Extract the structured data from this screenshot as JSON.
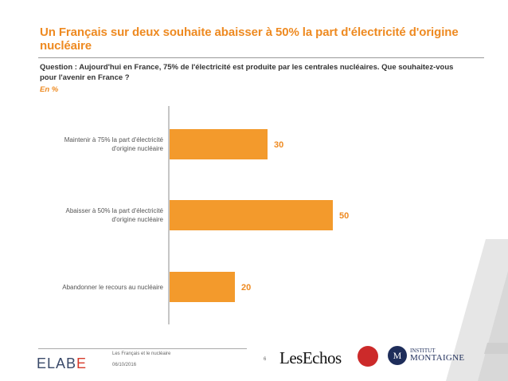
{
  "title": "Un Français sur deux souhaite abaisser à 50% la part d'électricité d'origine nucléaire",
  "question": "Question : Aujourd'hui en France, 75% de l'électricité est produite par les centrales nucléaires. Que souhaitez-vous pour l'avenir en France ?",
  "unit": "En  %",
  "chart_data": {
    "type": "bar",
    "orientation": "horizontal",
    "categories": [
      "Maintenir à 75% la part d'électricité d'origine nucléaire",
      "Abaisser à 50% la part d'électricité d'origine nucléaire",
      "Abandonner le recours au nucléaire"
    ],
    "values": [
      30,
      50,
      20
    ],
    "value_labels": [
      "30",
      "50",
      "20"
    ],
    "xlim": [
      0,
      100
    ],
    "bar_color": "#f39a2c",
    "label_color": "#ee8a21",
    "grid": false
  },
  "footer": {
    "logo_left": "ELABE",
    "subtitle": "Les Français et le nucléaire",
    "date": "06/10/2016",
    "page": "6",
    "partner_1": "LesEchos",
    "partner_3_line1": "INSTITUT",
    "partner_3_line2": "MONTAIGNE",
    "partner_3_seal": "M"
  },
  "colors": {
    "accent": "#ee8a21",
    "bar": "#f39a2c",
    "text_dark": "#333333",
    "navy": "#1e2d5a"
  }
}
